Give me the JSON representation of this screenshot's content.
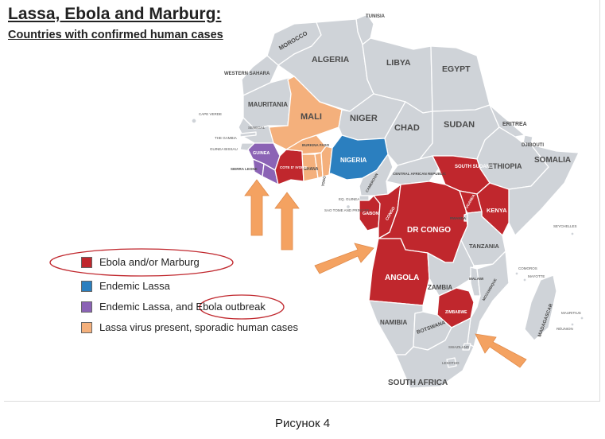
{
  "title": "Lassa, Ebola and Marburg:",
  "subtitle": "Countries with confirmed human cases",
  "caption": "Рисунок 4",
  "colors": {
    "ebola_marburg": "#c0272d",
    "endemic_lassa": "#2b7fbf",
    "lassa_ebola": "#8b63b5",
    "lassa_sporadic": "#f4b07c",
    "other": "#cfd3d8",
    "arrow": "#f4a261",
    "circle": "#c0272d"
  },
  "legend": [
    {
      "key": "ebola_marburg",
      "label": "Ebola and/or Marburg"
    },
    {
      "key": "endemic_lassa",
      "label": "Endemic Lassa"
    },
    {
      "key": "lassa_ebola",
      "label": "Endemic Lassa, and Ebola outbreak"
    },
    {
      "key": "lassa_sporadic",
      "label": "Lassa virus present, sporadic human cases"
    }
  ],
  "countries": {
    "tunisia": "TUNISIA",
    "morocco": "MOROCCO",
    "algeria": "ALGERIA",
    "libya": "LIBYA",
    "egypt": "EGYPT",
    "western_sahara": "WESTERN SAHARA",
    "mauritania": "MAURITANIA",
    "mali": "MALI",
    "niger": "NIGER",
    "chad": "CHAD",
    "sudan": "SUDAN",
    "eritrea": "ERITREA",
    "djibouti": "DJIBOUTI",
    "somalia": "SOMALIA",
    "ethiopia": "ETHIOPIA",
    "south_sudan": "SOUTH SUDAN",
    "kenya": "KENYA",
    "uganda": "UGANDA",
    "rwanda": "RWANDA",
    "tanzania": "TANZANIA",
    "dr_congo": "DR CONGO",
    "congo": "CONGO",
    "gabon": "GABON",
    "car": "CENTRAL AFRICAN REPUBLIC",
    "cameroon": "CAMEROON",
    "nigeria": "NIGERIA",
    "burkina_faso": "BURKINA FASO",
    "ghana": "GHANA",
    "togo": "TOGO",
    "cote_divoire": "COTE D' IVOIRE",
    "guinea": "GUINEA",
    "sierra_leone": "SIERRA LEONE",
    "gambia": "THE GAMBIA",
    "guinea_bissau": "GUINEA BISSAU",
    "senegal": "SENEGAL",
    "cape_verde": "CAPE VERDE",
    "eq_guinea": "EQ. GUINEA",
    "sao_tome": "SAO TOME AND PRINCIPE",
    "angola": "ANGOLA",
    "zambia": "ZAMBIA",
    "malawi": "MALAWI",
    "mozambique": "MOZAMBIQUE",
    "zimbabwe": "ZIMBABWE",
    "namibia": "NAMIBIA",
    "botswana": "BOTSWANA",
    "south_africa": "SOUTH AFRICA",
    "swaziland": "SWAZILAND",
    "lesotho": "LESOTHO",
    "madagascar": "MADAGASCAR",
    "seychelles": "SEYCHELLES",
    "comoros": "COMOROS",
    "mayotte": "MAYOTTE",
    "mauritius": "MAURITIUS",
    "reunion": "RÉUNION"
  }
}
